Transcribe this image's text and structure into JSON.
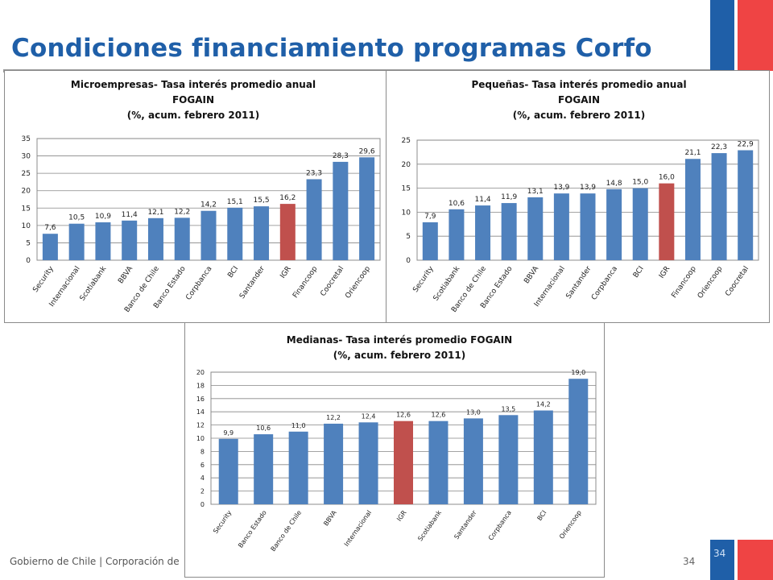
{
  "page": {
    "title": "Condiciones financiamiento programas Corfo",
    "footer": "Gobierno de Chile | Corporación de",
    "page_number": "34",
    "flag_page_number": "34"
  },
  "colors": {
    "title": "#1f5fa8",
    "bar": "#4f81bd",
    "highlight": "#c0504d",
    "flag_blue": "#1f5fa8",
    "flag_red": "#ef4444"
  },
  "chart_data": [
    {
      "type": "bar",
      "title": [
        "Microempresas- Tasa interés promedio anual",
        "FOGAIN",
        "(%, acum. febrero 2011)"
      ],
      "categories": [
        "Security",
        "Internacional",
        "Scotiabank",
        "BBVA",
        "Banco de Chile",
        "Banco Estado",
        "Corpbanca",
        "BCI",
        "Santander",
        "IGR",
        "Financoop",
        "Coocretal",
        "Oriencoop"
      ],
      "values": [
        7.6,
        10.5,
        10.9,
        11.4,
        12.1,
        12.2,
        14.2,
        15.1,
        15.5,
        16.2,
        23.3,
        28.3,
        29.6
      ],
      "value_labels": [
        "7,6",
        "10,5",
        "10,9",
        "11,4",
        "12,1",
        "12,2",
        "14,2",
        "15,1",
        "15,5",
        "16,2",
        "23,3",
        "28,3",
        "29,6"
      ],
      "ylim": [
        0,
        35
      ],
      "yticks": [
        "0",
        "5",
        "10",
        "15",
        "20",
        "25",
        "30",
        "35"
      ],
      "highlight": "IGR",
      "grid": true
    },
    {
      "type": "bar",
      "title": [
        "Pequeñas- Tasa interés promedio anual",
        "FOGAIN",
        "(%, acum. febrero 2011)"
      ],
      "categories": [
        "Security",
        "Scotiabank",
        "Banco de Chile",
        "Banco Estado",
        "BBVA",
        "Internacional",
        "Santander",
        "Corpbanca",
        "BCI",
        "IGR",
        "Financoop",
        "Oriencoop",
        "Coocretal"
      ],
      "values": [
        7.9,
        10.6,
        11.4,
        11.9,
        13.1,
        13.9,
        13.9,
        14.8,
        15.0,
        16.0,
        21.1,
        22.3,
        22.9
      ],
      "value_labels": [
        "7,9",
        "10,6",
        "11,4",
        "11,9",
        "13,1",
        "13,9",
        "13,9",
        "14,8",
        "15,0",
        "16,0",
        "21,1",
        "22,3",
        "22,9"
      ],
      "ylim": [
        0,
        25
      ],
      "yticks": [
        "0",
        "5",
        "10",
        "15",
        "20",
        "25"
      ],
      "highlight": "IGR",
      "grid": true
    },
    {
      "type": "bar",
      "title": [
        "Medianas- Tasa interés promedio FOGAIN",
        "(%, acum. febrero 2011)"
      ],
      "categories": [
        "Security",
        "Banco Estado",
        "Banco de Chile",
        "BBVA",
        "Internacional",
        "IGR",
        "Scotiabank",
        "Santander",
        "Corpbanca",
        "BCI",
        "Oriencoop"
      ],
      "values": [
        9.9,
        10.6,
        11.0,
        12.2,
        12.4,
        12.6,
        12.6,
        13.0,
        13.5,
        14.2,
        19.0
      ],
      "value_labels": [
        "9,9",
        "10,6",
        "11,0",
        "12,2",
        "12,4",
        "12,6",
        "12,6",
        "13,0",
        "13,5",
        "14,2",
        "19,0"
      ],
      "ylim": [
        0,
        20
      ],
      "yticks": [
        "0",
        "2",
        "4",
        "6",
        "8",
        "10",
        "12",
        "14",
        "16",
        "18",
        "20"
      ],
      "highlight": "IGR",
      "grid": true
    }
  ]
}
